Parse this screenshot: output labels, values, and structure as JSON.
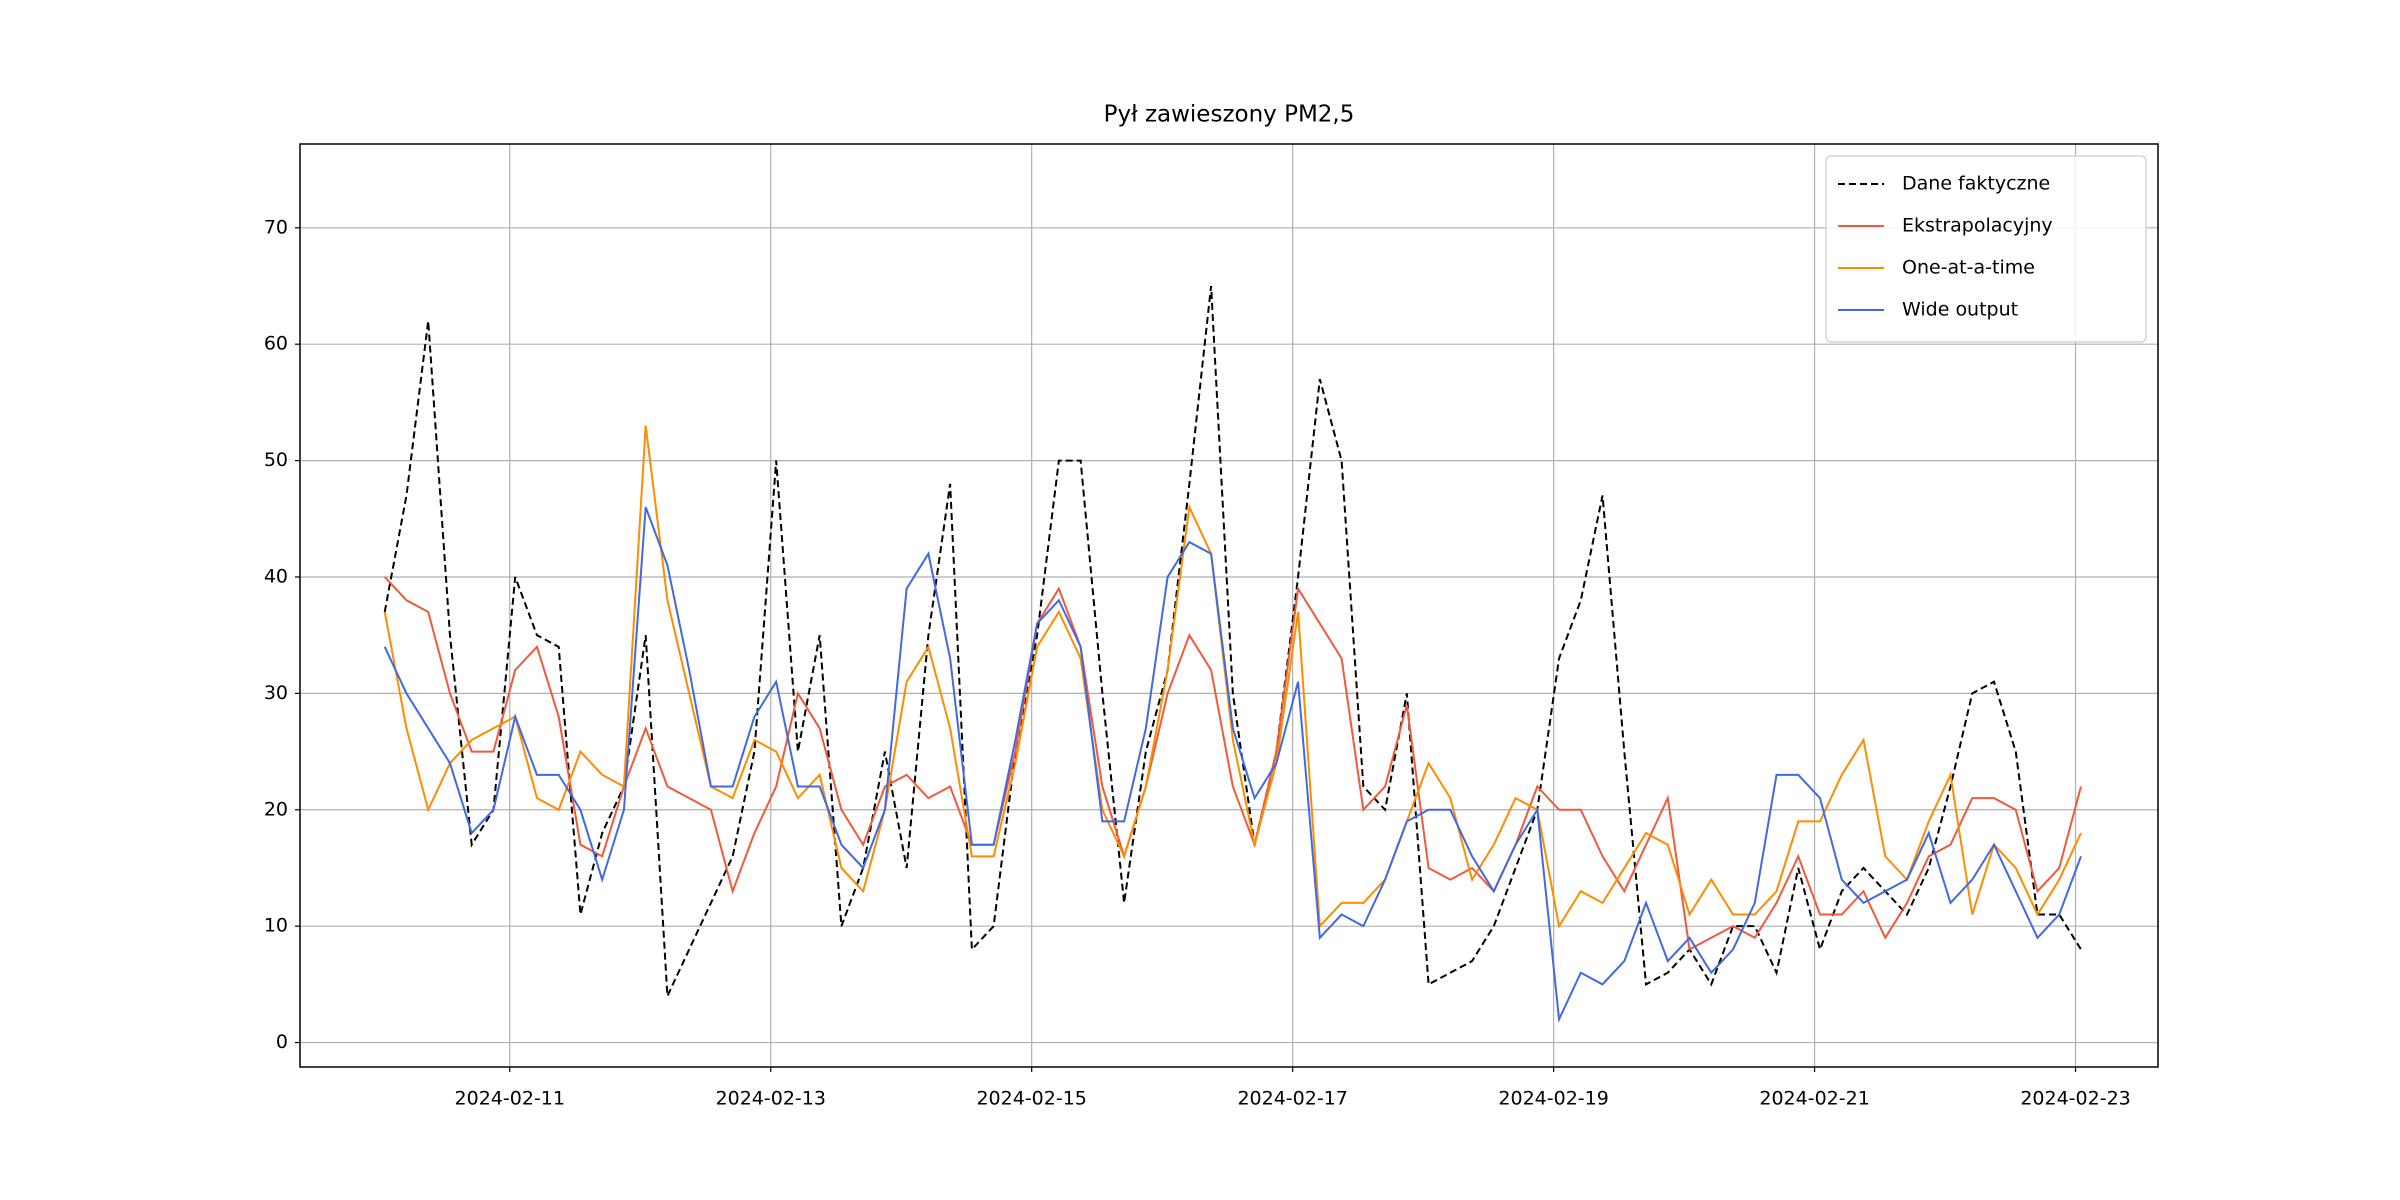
{
  "chart_data": {
    "type": "line",
    "title": "Pył zawieszony PM2,5",
    "x": [
      "2024-02-10T01:00",
      "2024-02-10T05:00",
      "2024-02-10T09:00",
      "2024-02-10T13:00",
      "2024-02-10T17:00",
      "2024-02-10T21:00",
      "2024-02-11T01:00",
      "2024-02-11T05:00",
      "2024-02-11T09:00",
      "2024-02-11T13:00",
      "2024-02-11T17:00",
      "2024-02-11T21:00",
      "2024-02-12T01:00",
      "2024-02-12T05:00",
      "2024-02-12T09:00",
      "2024-02-12T13:00",
      "2024-02-12T17:00",
      "2024-02-12T21:00",
      "2024-02-13T01:00",
      "2024-02-13T05:00",
      "2024-02-13T09:00",
      "2024-02-13T13:00",
      "2024-02-13T17:00",
      "2024-02-13T21:00",
      "2024-02-14T01:00",
      "2024-02-14T05:00",
      "2024-02-14T09:00",
      "2024-02-14T13:00",
      "2024-02-14T17:00",
      "2024-02-14T21:00",
      "2024-02-15T01:00",
      "2024-02-15T05:00",
      "2024-02-15T09:00",
      "2024-02-15T13:00",
      "2024-02-15T17:00",
      "2024-02-15T21:00",
      "2024-02-16T01:00",
      "2024-02-16T05:00",
      "2024-02-16T09:00",
      "2024-02-16T13:00",
      "2024-02-16T17:00",
      "2024-02-16T21:00",
      "2024-02-17T01:00",
      "2024-02-17T05:00",
      "2024-02-17T09:00",
      "2024-02-17T13:00",
      "2024-02-17T17:00",
      "2024-02-17T21:00",
      "2024-02-18T01:00",
      "2024-02-18T05:00",
      "2024-02-18T09:00",
      "2024-02-18T13:00",
      "2024-02-18T17:00",
      "2024-02-18T21:00",
      "2024-02-19T01:00",
      "2024-02-19T05:00",
      "2024-02-19T09:00",
      "2024-02-19T13:00",
      "2024-02-19T17:00",
      "2024-02-19T21:00",
      "2024-02-20T01:00",
      "2024-02-20T05:00",
      "2024-02-20T09:00",
      "2024-02-20T13:00",
      "2024-02-20T17:00",
      "2024-02-20T21:00",
      "2024-02-21T01:00",
      "2024-02-21T05:00",
      "2024-02-21T09:00",
      "2024-02-21T13:00",
      "2024-02-21T17:00",
      "2024-02-21T21:00",
      "2024-02-22T01:00",
      "2024-02-22T05:00",
      "2024-02-22T09:00",
      "2024-02-22T13:00",
      "2024-02-22T17:00",
      "2024-02-22T21:00",
      "2024-02-23T01:00"
    ],
    "series": [
      {
        "name": "Dane faktyczne",
        "color": "#000000",
        "linestyle": "dashed",
        "values": [
          37,
          47,
          62,
          35,
          17,
          20,
          40,
          35,
          34,
          11,
          18,
          22,
          35,
          4,
          8,
          12,
          16,
          25,
          50,
          25,
          35,
          10,
          15,
          25,
          15,
          35,
          48,
          8,
          10,
          25,
          35,
          50,
          50,
          30,
          12,
          25,
          32,
          48,
          65,
          30,
          17,
          25,
          40,
          57,
          50,
          22,
          20,
          30,
          5,
          6,
          7,
          10,
          15,
          20,
          33,
          38,
          47,
          25,
          5,
          6,
          8,
          5,
          10,
          10,
          6,
          15,
          8,
          13,
          15,
          13,
          11,
          15,
          22,
          30,
          31,
          25,
          11,
          11,
          8
        ]
      },
      {
        "name": "Ekstrapolacyjny",
        "color": "#f05a3c",
        "linestyle": "solid",
        "values": [
          40,
          38,
          37,
          30,
          25,
          25,
          32,
          34,
          28,
          17,
          16,
          22,
          27,
          22,
          21,
          20,
          13,
          18,
          22,
          30,
          27,
          20,
          17,
          22,
          23,
          21,
          22,
          17,
          17,
          25,
          36,
          39,
          34,
          22,
          16,
          22,
          30,
          35,
          32,
          22,
          17,
          25,
          39,
          36,
          33,
          20,
          22,
          29,
          15,
          14,
          15,
          13,
          17,
          22,
          20,
          20,
          16,
          13,
          17,
          21,
          8,
          9,
          10,
          9,
          12,
          16,
          11,
          11,
          13,
          9,
          12,
          16,
          17,
          21,
          21,
          20,
          13,
          15,
          22
        ]
      },
      {
        "name": "One-at-a-time",
        "color": "#ff8c00",
        "linestyle": "solid",
        "values": [
          37,
          27,
          20,
          24,
          26,
          27,
          28,
          21,
          20,
          25,
          23,
          22,
          53,
          38,
          30,
          22,
          21,
          26,
          25,
          21,
          23,
          15,
          13,
          20,
          31,
          34,
          27,
          16,
          16,
          24,
          34,
          37,
          33,
          20,
          16,
          22,
          32,
          46,
          42,
          26,
          17,
          24,
          37,
          10,
          12,
          12,
          14,
          19,
          24,
          21,
          14,
          17,
          21,
          20,
          10,
          13,
          12,
          15,
          18,
          17,
          11,
          14,
          11,
          11,
          13,
          19,
          19,
          23,
          26,
          16,
          14,
          19,
          23,
          11,
          17,
          15,
          11,
          14,
          18
        ]
      },
      {
        "name": "Wide output",
        "color": "#4169e1",
        "linestyle": "solid",
        "values": [
          34,
          30,
          27,
          24,
          18,
          20,
          28,
          23,
          23,
          20,
          14,
          20,
          46,
          41,
          32,
          22,
          22,
          28,
          31,
          22,
          22,
          17,
          15,
          20,
          39,
          42,
          33,
          17,
          17,
          26,
          36,
          38,
          34,
          19,
          19,
          27,
          40,
          43,
          42,
          27,
          21,
          24,
          31,
          9,
          11,
          10,
          14,
          19,
          20,
          20,
          16,
          13,
          17,
          20,
          2,
          6,
          5,
          7,
          12,
          7,
          9,
          6,
          8,
          12,
          23,
          23,
          21,
          14,
          12,
          13,
          14,
          18,
          12,
          14,
          17,
          13,
          9,
          11,
          16
        ]
      }
    ],
    "xlim": [
      "2024-02-09T09:25",
      "2024-02-23T15:10"
    ],
    "xticks": [
      "2024-02-11",
      "2024-02-13",
      "2024-02-15",
      "2024-02-17",
      "2024-02-19",
      "2024-02-21",
      "2024-02-23"
    ],
    "ylim": [
      -2.1,
      77.2
    ],
    "yticks": [
      0,
      10,
      20,
      30,
      40,
      50,
      60,
      70
    ],
    "grid": true,
    "legend": "upper right"
  }
}
